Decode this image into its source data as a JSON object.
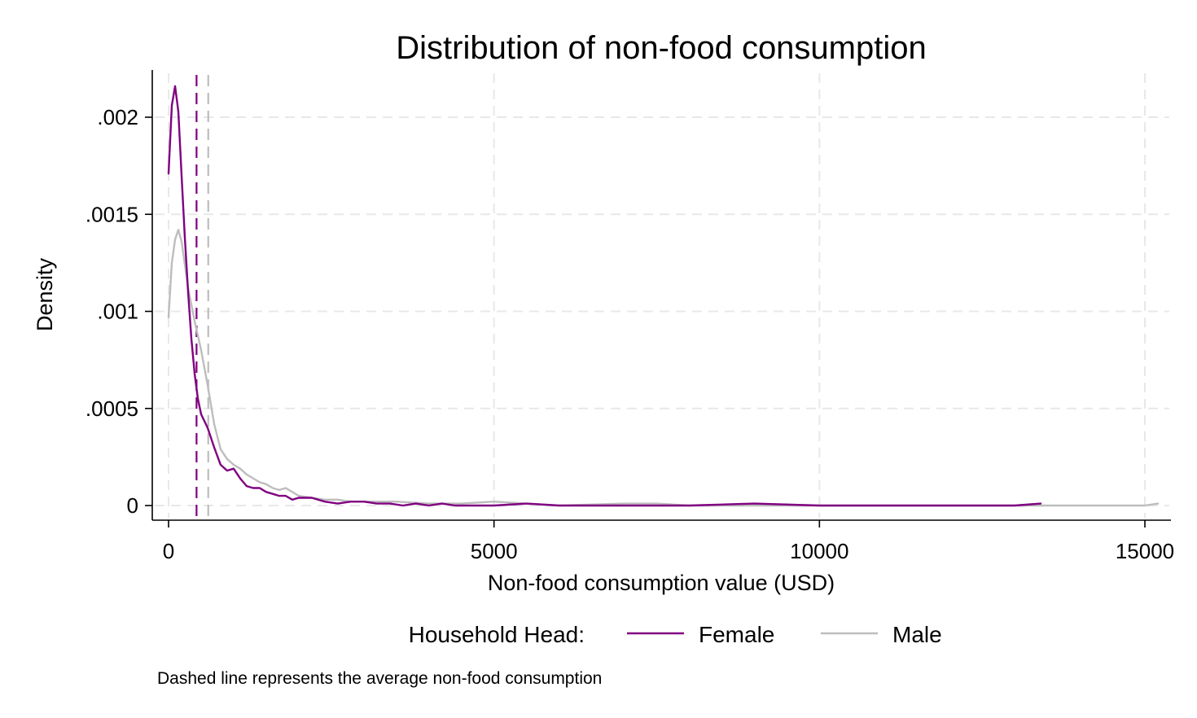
{
  "chart_data": {
    "type": "line",
    "title": "Distribution of non-food consumption",
    "xlabel": "Non-food consumption value (USD)",
    "ylabel": "Density",
    "xlim": [
      0,
      15200
    ],
    "ylim": [
      0,
      0.00225
    ],
    "xticks": [
      0,
      5000,
      10000,
      15000
    ],
    "xtick_labels": [
      "0",
      "5000",
      "10000",
      "15000"
    ],
    "yticks": [
      0,
      0.0005,
      0.001,
      0.0015,
      0.002
    ],
    "ytick_labels": [
      "0",
      ".0005",
      ".001",
      ".0015",
      ".002"
    ],
    "grid": true,
    "legend": {
      "title": "Household Head:",
      "position": "bottom"
    },
    "note": "Dashed line represents the average non-food consumption",
    "series": [
      {
        "name": "Female",
        "color": "#800080",
        "mean": 430,
        "x": [
          0,
          50,
          100,
          150,
          200,
          250,
          300,
          350,
          400,
          450,
          500,
          600,
          700,
          800,
          900,
          1000,
          1100,
          1200,
          1300,
          1400,
          1500,
          1600,
          1700,
          1800,
          1900,
          2000,
          2200,
          2400,
          2600,
          2800,
          3000,
          3200,
          3400,
          3600,
          3800,
          4000,
          4200,
          4400,
          4600,
          4800,
          5000,
          5500,
          6000,
          7000,
          8000,
          9000,
          10000,
          11000,
          12000,
          13000,
          13400
        ],
        "y": [
          0.00171,
          0.00206,
          0.00216,
          0.00203,
          0.0017,
          0.00138,
          0.0011,
          0.00086,
          0.00068,
          0.00055,
          0.00047,
          0.0004,
          0.0003,
          0.00021,
          0.00018,
          0.00019,
          0.00014,
          0.0001,
          9e-05,
          9e-05,
          7e-05,
          6e-05,
          5e-05,
          5e-05,
          3e-05,
          4e-05,
          4e-05,
          2e-05,
          1e-05,
          2e-05,
          2e-05,
          1e-05,
          1e-05,
          0.0,
          1e-05,
          0.0,
          1e-05,
          0.0,
          0.0,
          0.0,
          0.0,
          1e-05,
          0.0,
          0.0,
          0.0,
          1e-05,
          0.0,
          0.0,
          0.0,
          0.0,
          1e-05
        ]
      },
      {
        "name": "Male",
        "color": "#bdbdbd",
        "mean": 610,
        "x": [
          0,
          50,
          100,
          150,
          200,
          250,
          300,
          400,
          500,
          600,
          700,
          800,
          900,
          1000,
          1100,
          1200,
          1300,
          1400,
          1500,
          1600,
          1700,
          1800,
          1900,
          2000,
          2200,
          2400,
          2600,
          2800,
          3000,
          3500,
          4000,
          4500,
          5000,
          6000,
          7000,
          7500,
          8000,
          9000,
          10000,
          12000,
          14000,
          15000,
          15200
        ],
        "y": [
          0.00097,
          0.00125,
          0.00137,
          0.00142,
          0.00136,
          0.00124,
          0.00112,
          0.00095,
          0.0008,
          0.00062,
          0.00042,
          0.00029,
          0.00024,
          0.00021,
          0.00019,
          0.00016,
          0.00014,
          0.00012,
          0.00011,
          9e-05,
          8e-05,
          9e-05,
          7e-05,
          5e-05,
          4e-05,
          3e-05,
          3e-05,
          2e-05,
          2e-05,
          2e-05,
          1e-05,
          1e-05,
          2e-05,
          0.0,
          1e-05,
          1e-05,
          0.0,
          0.0,
          0.0,
          0.0,
          0.0,
          0.0,
          1e-05
        ]
      }
    ]
  }
}
